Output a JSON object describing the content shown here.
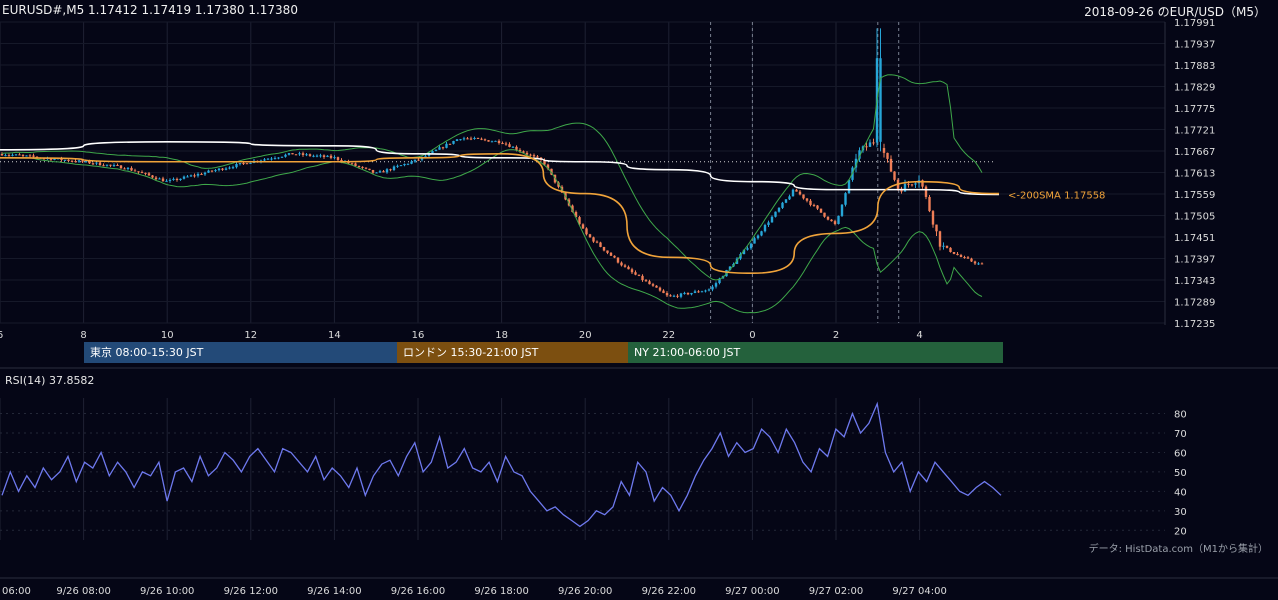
{
  "header": {
    "symbol_info": "EURUSD#,M5 1.17412 1.17419 1.17380 1.17380",
    "title": "2018-09-26 のEUR/USD（M5）"
  },
  "sessions": [
    {
      "label": "東京 08:00-15:30 JST",
      "color": "#234a78"
    },
    {
      "label": "ロンドン 15:30-21:00 JST",
      "color": "#7c4f10"
    },
    {
      "label": "NY 21:00-06:00 JST",
      "color": "#24613c"
    }
  ],
  "sma_label": "<-200SMA 1.17558",
  "rsi": {
    "label": "RSI(14) 37.8582"
  },
  "credit": "データ: HistData.com（M1から集計）",
  "colors": {
    "background": "#050616",
    "up_candle": "#27a6d8",
    "down_candle": "#f07e57",
    "sma_short": "#f0a33a",
    "sma_200": "#ffffff",
    "bollinger": "#3fa84a",
    "rsi_line": "#6e79ee"
  },
  "chart_data": [
    {
      "type": "candlestick",
      "x_ticks": [
        "6",
        "8",
        "10",
        "12",
        "14",
        "16",
        "18",
        "20",
        "22",
        "0",
        "2",
        "4"
      ],
      "y_ticks": [
        "1.17991",
        "1.17937",
        "1.17883",
        "1.17829",
        "1.17775",
        "1.17721",
        "1.17667",
        "1.17613",
        "1.17559",
        "1.17505",
        "1.17451",
        "1.17397",
        "1.17343",
        "1.17289",
        "1.17235"
      ],
      "ylim": [
        1.17235,
        1.17991
      ],
      "reference_line": 1.1764,
      "close_path": [
        [
          "6",
          1.1766
        ],
        [
          "7",
          1.1765
        ],
        [
          "8",
          1.1764
        ],
        [
          "9",
          1.17625
        ],
        [
          "10",
          1.1759
        ],
        [
          "11",
          1.17615
        ],
        [
          "12",
          1.1764
        ],
        [
          "13",
          1.1766
        ],
        [
          "14",
          1.1765
        ],
        [
          "15",
          1.1761
        ],
        [
          "16",
          1.17645
        ],
        [
          "17",
          1.177
        ],
        [
          "18",
          1.1769
        ],
        [
          "19",
          1.1764
        ],
        [
          "20",
          1.1746
        ],
        [
          "21",
          1.1737
        ],
        [
          "22",
          1.173
        ],
        [
          "23",
          1.1732
        ],
        [
          "0",
          1.1744
        ],
        [
          "1",
          1.1757
        ],
        [
          "2",
          1.1748
        ],
        [
          "2.5",
          1.1766
        ],
        [
          "3",
          1.177
        ],
        [
          "3.5",
          1.1757
        ],
        [
          "4",
          1.176
        ],
        [
          "4.5",
          1.1743
        ],
        [
          "5",
          1.174
        ],
        [
          "5.5",
          1.1738
        ]
      ],
      "series": [
        {
          "name": "200SMA",
          "x": [
            "6",
            "10",
            "14",
            "16",
            "18",
            "20",
            "22",
            "0",
            "2",
            "4",
            "5.9"
          ],
          "values": [
            1.1767,
            1.1769,
            1.1768,
            1.1766,
            1.1765,
            1.1764,
            1.1762,
            1.1759,
            1.1757,
            1.1757,
            1.17558
          ]
        },
        {
          "name": "",
          "x": [
            "6",
            "10",
            "14",
            "16",
            "18",
            "20",
            "22",
            "0",
            "2",
            "4",
            "5.9"
          ],
          "values": [
            1.1765,
            1.1764,
            1.1764,
            1.1765,
            1.1766,
            1.1756,
            1.174,
            1.1736,
            1.1746,
            1.1759,
            1.1756
          ]
        }
      ]
    },
    {
      "type": "line",
      "title": "RSI(14) 37.8582",
      "y_ticks": [
        "80",
        "70",
        "60",
        "50",
        "40",
        "30",
        "20"
      ],
      "ylim": [
        15,
        88
      ],
      "values": [
        38,
        50,
        40,
        48,
        42,
        52,
        46,
        50,
        58,
        45,
        55,
        52,
        60,
        48,
        55,
        50,
        42,
        50,
        48,
        55,
        35,
        50,
        52,
        45,
        58,
        48,
        52,
        60,
        56,
        50,
        58,
        62,
        56,
        50,
        62,
        60,
        55,
        50,
        58,
        46,
        52,
        48,
        42,
        52,
        38,
        48,
        54,
        56,
        48,
        58,
        65,
        50,
        55,
        68,
        52,
        55,
        62,
        52,
        50,
        55,
        45,
        58,
        50,
        48,
        40,
        35,
        30,
        32,
        28,
        25,
        22,
        25,
        30,
        28,
        32,
        45,
        38,
        55,
        50,
        35,
        42,
        38,
        30,
        38,
        48,
        56,
        62,
        70,
        58,
        65,
        60,
        62,
        72,
        68,
        60,
        72,
        65,
        55,
        50,
        62,
        58,
        72,
        68,
        80,
        70,
        75,
        85,
        60,
        50,
        55,
        40,
        50,
        45,
        55,
        50,
        45,
        40,
        38,
        42,
        45,
        42,
        38
      ]
    }
  ],
  "time_axis": [
    "06:00",
    "9/26 08:00",
    "9/26 10:00",
    "9/26 12:00",
    "9/26 14:00",
    "9/26 16:00",
    "9/26 18:00",
    "9/26 20:00",
    "9/26 22:00",
    "9/27 00:00",
    "9/27 02:00",
    "9/27 04:00"
  ]
}
